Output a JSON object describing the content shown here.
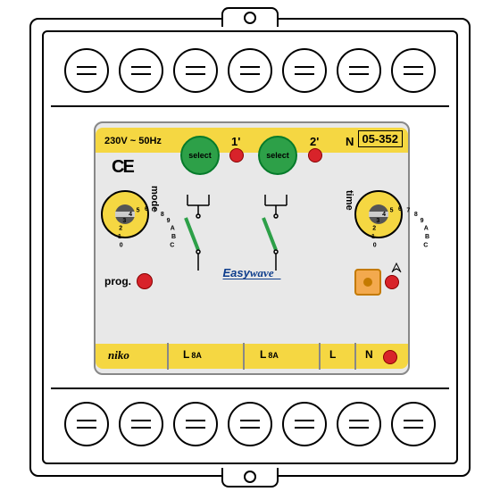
{
  "device": {
    "voltage": "230V ~ 50Hz",
    "model": "05-352",
    "brand": "niko",
    "logo_main": "Easy",
    "logo_sub": "wave",
    "ce": "CE"
  },
  "header": {
    "t1": "1",
    "t1p": "1'",
    "t2": "2",
    "t2p": "2'",
    "n": "N"
  },
  "buttons": {
    "select": "select"
  },
  "rotary": {
    "mode_label": "mode",
    "time_label": "time",
    "positions": [
      "0",
      "1",
      "2",
      "3",
      "4",
      "5",
      "6",
      "7",
      "8",
      "9",
      "A",
      "B",
      "C"
    ]
  },
  "prog": {
    "label": "prog."
  },
  "footer": {
    "L": "L",
    "amp": "8A",
    "N": "N"
  },
  "colors": {
    "panel_bg": "#e8e8e8",
    "yellow": "#f5d742",
    "green": "#2da048",
    "green_dark": "#057a2a",
    "red": "#d8232a",
    "orange": "#f3a94e",
    "blue": "#0e3d8c"
  },
  "terminals": {
    "top_count": 7,
    "bottom_count": 7
  }
}
